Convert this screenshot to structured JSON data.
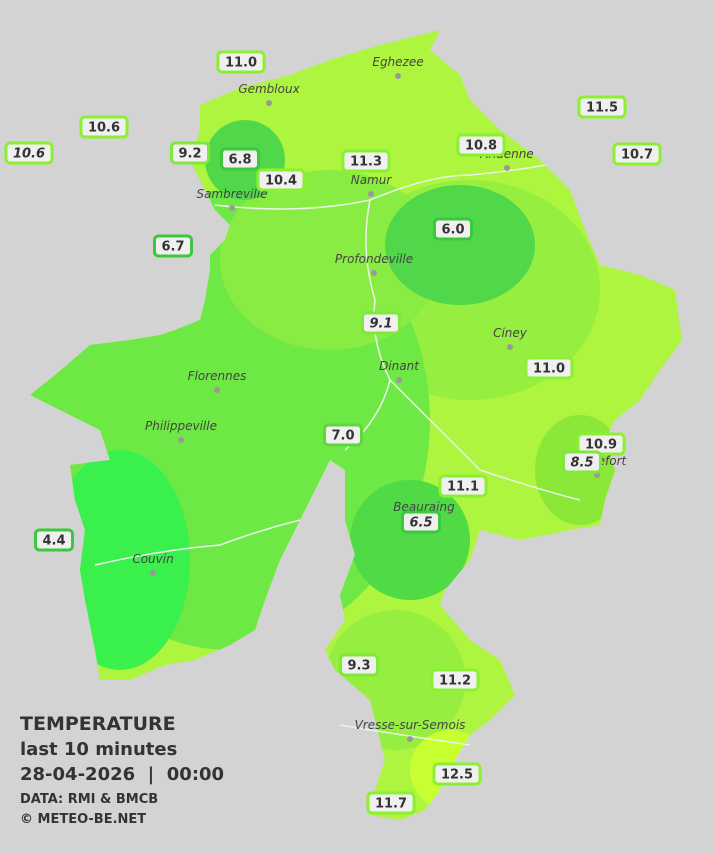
{
  "title": {
    "heading": "TEMPERATURE",
    "period": "last 10 minutes",
    "timestamp": "28-04-2026  |  00:00",
    "source": "DATA: RMI & BMCB",
    "copyright": "© METEO-BE.NET"
  },
  "cities": [
    {
      "label": "Eghezee"
    },
    {
      "label": "Gembloux"
    },
    {
      "label": "Andenne"
    },
    {
      "label": "Namur"
    },
    {
      "label": "Sambreville"
    },
    {
      "label": "Profondeville"
    },
    {
      "label": "Ciney"
    },
    {
      "label": "Florennes"
    },
    {
      "label": "Dinant"
    },
    {
      "label": "Philippeville"
    },
    {
      "label": "Couvin"
    },
    {
      "label": "Vresse-sur-Semois"
    },
    {
      "label": "Beauraing"
    },
    {
      "label": "Rochefort"
    }
  ],
  "stations": [
    {
      "label": "11.0",
      "italic": false,
      "color": "#8cf032"
    },
    {
      "label": "10.6",
      "italic": false,
      "color": "#8cf032"
    },
    {
      "label": "10.6",
      "italic": true,
      "color": "#8cf032"
    },
    {
      "label": "9.2",
      "italic": false,
      "color": "#7fe83a"
    },
    {
      "label": "6.8",
      "italic": false,
      "color": "#3cc83c"
    },
    {
      "label": "10.4",
      "italic": false,
      "color": "#8cf032"
    },
    {
      "label": "11.3",
      "italic": false,
      "color": "#8cf032"
    },
    {
      "label": "10.8",
      "italic": false,
      "color": "#8cf032"
    },
    {
      "label": "11.5",
      "italic": false,
      "color": "#8cf032"
    },
    {
      "label": "10.7",
      "italic": false,
      "color": "#8cf032"
    },
    {
      "label": "6.0",
      "italic": false,
      "color": "#3cc83c"
    },
    {
      "label": "6.7",
      "italic": false,
      "color": "#3cc83c"
    },
    {
      "label": "9.1",
      "italic": true,
      "color": "#7fe83a"
    },
    {
      "label": "11.0",
      "italic": false,
      "color": "#8cf032"
    },
    {
      "label": "7.0",
      "italic": false,
      "color": "#5cd83a"
    },
    {
      "label": "10.9",
      "italic": false,
      "color": "#8cf032"
    },
    {
      "label": "8.5",
      "italic": true,
      "color": "#7fe83a"
    },
    {
      "label": "11.1",
      "italic": false,
      "color": "#8cf032"
    },
    {
      "label": "6.5",
      "italic": true,
      "color": "#3cc83c"
    },
    {
      "label": "4.4",
      "italic": false,
      "color": "#3cc83c"
    },
    {
      "label": "9.3",
      "italic": false,
      "color": "#7fe83a"
    },
    {
      "label": "11.2",
      "italic": false,
      "color": "#8cf032"
    },
    {
      "label": "12.5",
      "italic": false,
      "color": "#8cf032"
    },
    {
      "label": "11.7",
      "italic": false,
      "color": "#8cf032"
    }
  ]
}
